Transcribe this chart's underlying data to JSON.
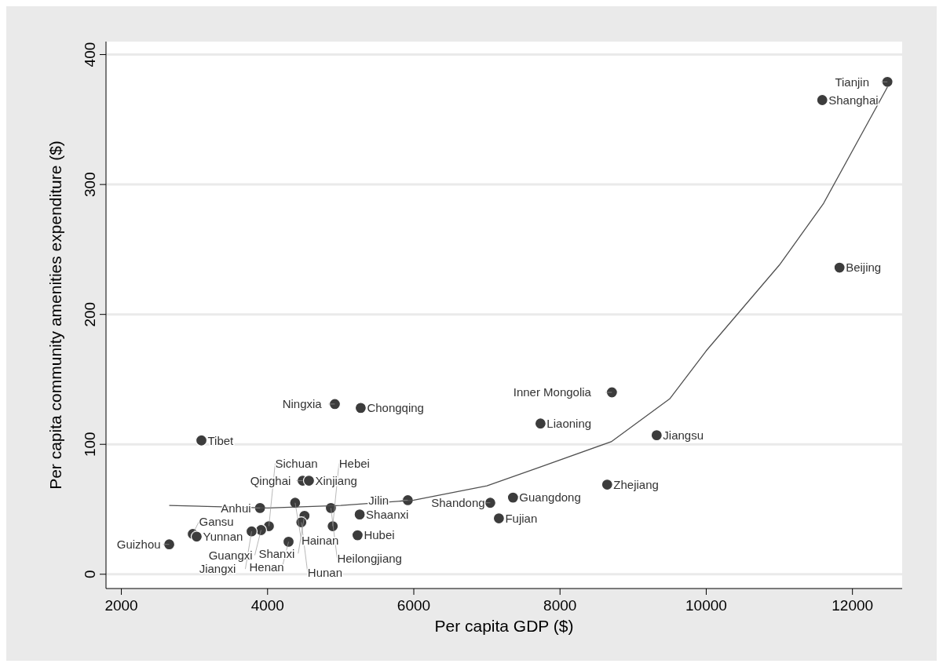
{
  "chart_data": {
    "type": "scatter",
    "xlabel": "Per capita GDP ($)",
    "ylabel": "Per capita community amenities expenditure ($)",
    "xlim": [
      1790,
      12680
    ],
    "ylim": [
      -11,
      410
    ],
    "xticks": [
      2000,
      4000,
      6000,
      8000,
      10000,
      12000
    ],
    "yticks": [
      0,
      100,
      200,
      300,
      400
    ],
    "grid": "y",
    "marker": "circle",
    "series": [
      {
        "color": "#3c3c3c",
        "x": [
          12478,
          11587,
          11823,
          8710,
          7733,
          9322,
          8645,
          7357,
          7046,
          7164,
          5918,
          4920,
          5274,
          3095,
          4480,
          4566,
          3897,
          4377,
          4866,
          5260,
          4505,
          4462,
          4891,
          5231,
          4287,
          4018,
          3911,
          3782,
          2977,
          3030,
          2655
        ],
        "values": [
          379,
          365,
          236,
          140,
          116,
          107,
          69,
          59,
          55,
          43,
          57,
          131,
          128,
          103,
          72,
          72,
          51,
          55,
          51,
          46,
          45,
          40,
          37,
          30,
          25,
          37,
          34,
          33,
          31,
          29,
          23
        ]
      },
      {
        "type": "line",
        "color": "#505050",
        "marker": "none",
        "x": [
          2655,
          4000,
          5000,
          6000,
          7000,
          7700,
          8700,
          9500,
          10000,
          11000,
          11600,
          12478
        ],
        "values": [
          53,
          51,
          53,
          57,
          68,
          82,
          102,
          135,
          172,
          238,
          285,
          375
        ]
      }
    ],
    "annotations": [
      {
        "text": "Tianjin",
        "x": 12478,
        "y": 379
      },
      {
        "text": "Shanghai",
        "x": 11587,
        "y": 365
      },
      {
        "text": "Beijing",
        "x": 11823,
        "y": 236
      },
      {
        "text": "Inner Mongolia",
        "x": 8710,
        "y": 140
      },
      {
        "text": "Liaoning",
        "x": 7733,
        "y": 116
      },
      {
        "text": "Jiangsu",
        "x": 9322,
        "y": 107
      },
      {
        "text": "Zhejiang",
        "x": 8645,
        "y": 69
      },
      {
        "text": "Guangdong",
        "x": 7357,
        "y": 59
      },
      {
        "text": "Shandong",
        "x": 7046,
        "y": 55
      },
      {
        "text": "Fujian",
        "x": 7164,
        "y": 43
      },
      {
        "text": "Jilin",
        "x": 5918,
        "y": 57
      },
      {
        "text": "Ningxia",
        "x": 4920,
        "y": 131
      },
      {
        "text": "Chongqing",
        "x": 5274,
        "y": 128
      },
      {
        "text": "Tibet",
        "x": 3095,
        "y": 103
      },
      {
        "text": "Qinghai",
        "x": 4480,
        "y": 72
      },
      {
        "text": "Xinjiang",
        "x": 4566,
        "y": 72
      },
      {
        "text": "Anhui",
        "x": 3897,
        "y": 51
      },
      {
        "text": "Hainan",
        "x": 4377,
        "y": 55
      },
      {
        "text": "Heilongjiang",
        "x": 4866,
        "y": 51
      },
      {
        "text": "Shaanxi",
        "x": 5260,
        "y": 46
      },
      {
        "text": "Shanxi",
        "x": 4505,
        "y": 45
      },
      {
        "text": "Hunan",
        "x": 4462,
        "y": 40
      },
      {
        "text": "Hebei",
        "x": 4891,
        "y": 37
      },
      {
        "text": "Hubei",
        "x": 5231,
        "y": 30
      },
      {
        "text": "Henan",
        "x": 4287,
        "y": 25
      },
      {
        "text": "Sichuan",
        "x": 4018,
        "y": 37
      },
      {
        "text": "Guangxi",
        "x": 3911,
        "y": 34
      },
      {
        "text": "Jiangxi",
        "x": 3782,
        "y": 33
      },
      {
        "text": "Gansu",
        "x": 2977,
        "y": 31
      },
      {
        "text": "Yunnan",
        "x": 3030,
        "y": 29
      },
      {
        "text": "Guizhou",
        "x": 2655,
        "y": 23
      }
    ]
  }
}
